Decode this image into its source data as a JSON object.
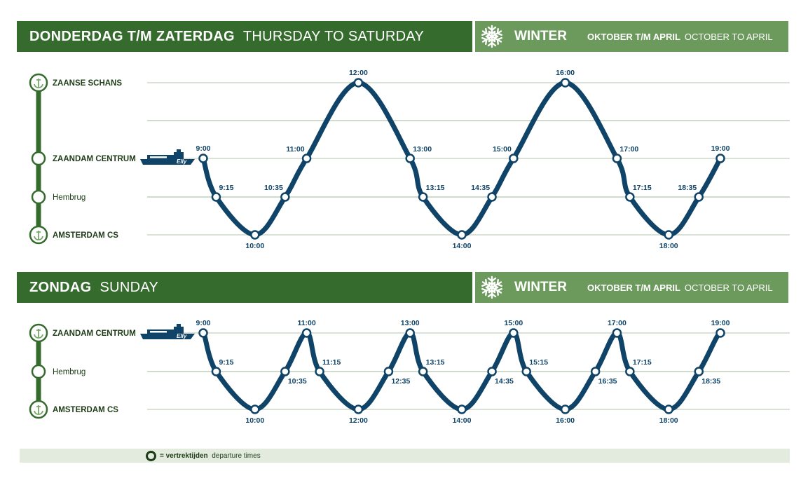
{
  "sections": [
    {
      "title_nl": "DONDERDAG T/M ZATERDAG",
      "title_en": "THURSDAY TO SATURDAY",
      "season": "WINTER",
      "months_nl": "OKTOBER T/M APRIL",
      "months_en": "OCTOBER TO APRIL",
      "boat_name": "Elly",
      "stations": [
        {
          "name": "ZAANSE SCHANS",
          "icon": "anchor-icon",
          "bold": true
        },
        {
          "name": "",
          "icon": "none"
        },
        {
          "name": "ZAANDAM CENTRUM",
          "icon": "circle",
          "bold": true
        },
        {
          "name": "Hembrug",
          "icon": "circle",
          "bold": false
        },
        {
          "name": "AMSTERDAM CS",
          "icon": "anchor-icon",
          "bold": true
        }
      ],
      "departures": [
        {
          "time": "9:00",
          "stop": 2,
          "pos": "above"
        },
        {
          "time": "9:15",
          "stop": 3,
          "pos": "right-above"
        },
        {
          "time": "10:00",
          "stop": 4,
          "pos": "below"
        },
        {
          "time": "10:35",
          "stop": 3,
          "pos": "left-above"
        },
        {
          "time": "11:00",
          "stop": 2,
          "pos": "left-above"
        },
        {
          "time": "12:00",
          "stop": 0,
          "pos": "above"
        },
        {
          "time": "13:00",
          "stop": 2,
          "pos": "right-above"
        },
        {
          "time": "13:15",
          "stop": 3,
          "pos": "right-above"
        },
        {
          "time": "14:00",
          "stop": 4,
          "pos": "below"
        },
        {
          "time": "14:35",
          "stop": 3,
          "pos": "left-above"
        },
        {
          "time": "15:00",
          "stop": 2,
          "pos": "left-above"
        },
        {
          "time": "16:00",
          "stop": 0,
          "pos": "above"
        },
        {
          "time": "17:00",
          "stop": 2,
          "pos": "right-above"
        },
        {
          "time": "17:15",
          "stop": 3,
          "pos": "right-above"
        },
        {
          "time": "18:00",
          "stop": 4,
          "pos": "below"
        },
        {
          "time": "18:35",
          "stop": 3,
          "pos": "left-above"
        },
        {
          "time": "19:00",
          "stop": 2,
          "pos": "above"
        }
      ]
    },
    {
      "title_nl": "ZONDAG",
      "title_en": "SUNDAY",
      "season": "WINTER",
      "months_nl": "OKTOBER T/M APRIL",
      "months_en": "OCTOBER TO APRIL",
      "boat_name": "Elly",
      "stations": [
        {
          "name": "ZAANDAM CENTRUM",
          "icon": "anchor-icon",
          "bold": true
        },
        {
          "name": "Hembrug",
          "icon": "circle",
          "bold": false
        },
        {
          "name": "AMSTERDAM CS",
          "icon": "anchor-icon",
          "bold": true
        }
      ],
      "departures": [
        {
          "time": "9:00",
          "stop": 0,
          "pos": "above"
        },
        {
          "time": "9:15",
          "stop": 1,
          "pos": "right-above"
        },
        {
          "time": "10:00",
          "stop": 2,
          "pos": "below"
        },
        {
          "time": "10:35",
          "stop": 1,
          "pos": "right-below"
        },
        {
          "time": "11:00",
          "stop": 0,
          "pos": "above"
        },
        {
          "time": "11:15",
          "stop": 1,
          "pos": "right-above"
        },
        {
          "time": "12:00",
          "stop": 2,
          "pos": "below"
        },
        {
          "time": "12:35",
          "stop": 1,
          "pos": "right-below"
        },
        {
          "time": "13:00",
          "stop": 0,
          "pos": "above"
        },
        {
          "time": "13:15",
          "stop": 1,
          "pos": "right-above"
        },
        {
          "time": "14:00",
          "stop": 2,
          "pos": "below"
        },
        {
          "time": "14:35",
          "stop": 1,
          "pos": "right-below"
        },
        {
          "time": "15:00",
          "stop": 0,
          "pos": "above"
        },
        {
          "time": "15:15",
          "stop": 1,
          "pos": "right-above"
        },
        {
          "time": "16:00",
          "stop": 2,
          "pos": "below"
        },
        {
          "time": "16:35",
          "stop": 1,
          "pos": "right-below"
        },
        {
          "time": "17:00",
          "stop": 0,
          "pos": "above"
        },
        {
          "time": "17:15",
          "stop": 1,
          "pos": "right-above"
        },
        {
          "time": "18:00",
          "stop": 2,
          "pos": "below"
        },
        {
          "time": "18:35",
          "stop": 1,
          "pos": "right-below"
        },
        {
          "time": "19:00",
          "stop": 0,
          "pos": "above"
        }
      ]
    }
  ],
  "legend": {
    "nl": "= vertrektijden",
    "en": "departure times"
  },
  "colors": {
    "dark_green": "#356b2d",
    "light_green": "#6b9a5c",
    "route": "#0f4468",
    "legend_bg": "#e2ebdd"
  }
}
